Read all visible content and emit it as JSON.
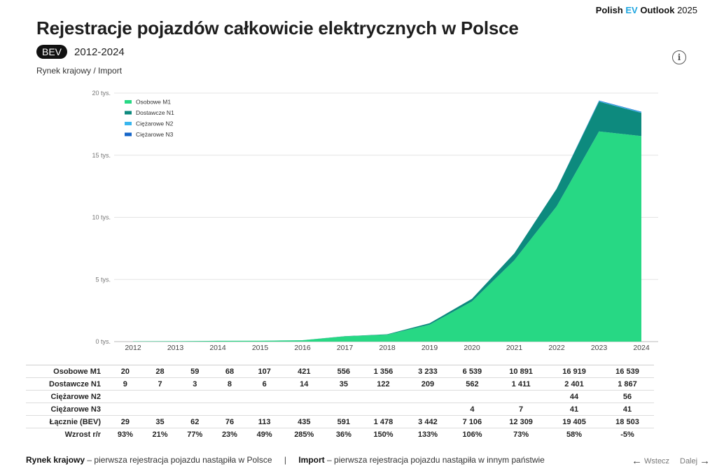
{
  "header": {
    "brand_prefix": "Polish",
    "brand_ev": "EV",
    "brand_bold": "Outlook",
    "brand_year": "2025",
    "title": "Rejestracje pojazdów całkowicie elektrycznych w Polsce",
    "badge": "BEV",
    "years": "2012-2024",
    "subtitle": "Rynek krajowy / Import",
    "info_icon": "i"
  },
  "chart_data": {
    "type": "area",
    "stacked": true,
    "categories": [
      "2012",
      "2013",
      "2014",
      "2015",
      "2016",
      "2017",
      "2018",
      "2019",
      "2020",
      "2021",
      "2022",
      "2023",
      "2024"
    ],
    "ylim": [
      0,
      20000
    ],
    "yticks": [
      0,
      5000,
      10000,
      15000,
      20000
    ],
    "ytick_labels": [
      "0 tys.",
      "5 tys.",
      "10 tys.",
      "15 tys.",
      "20 tys."
    ],
    "grid": true,
    "legend_position": "top-left",
    "series": [
      {
        "name": "Osobowe M1",
        "color": "#27d884",
        "values": [
          20,
          28,
          59,
          68,
          107,
          421,
          556,
          1356,
          3233,
          6539,
          10891,
          16919,
          16539
        ]
      },
      {
        "name": "Dostawcze N1",
        "color": "#0d8a7e",
        "values": [
          9,
          7,
          3,
          8,
          6,
          14,
          35,
          122,
          209,
          562,
          1411,
          2401,
          1867
        ]
      },
      {
        "name": "Ciężarowe N2",
        "color": "#39b6ee",
        "values": [
          0,
          0,
          0,
          0,
          0,
          0,
          0,
          0,
          0,
          0,
          0,
          44,
          56
        ]
      },
      {
        "name": "Ciężarowe N3",
        "color": "#1565c8",
        "values": [
          0,
          0,
          0,
          0,
          0,
          0,
          0,
          0,
          0,
          4,
          7,
          41,
          41
        ]
      }
    ]
  },
  "table": {
    "rows": [
      {
        "label": "Osobowe M1",
        "cells": [
          "20",
          "28",
          "59",
          "68",
          "107",
          "421",
          "556",
          "1 356",
          "3 233",
          "6 539",
          "10 891",
          "16 919",
          "16 539"
        ]
      },
      {
        "label": "Dostawcze N1",
        "cells": [
          "9",
          "7",
          "3",
          "8",
          "6",
          "14",
          "35",
          "122",
          "209",
          "562",
          "1 411",
          "2 401",
          "1 867"
        ]
      },
      {
        "label": "Ciężarowe N2",
        "cells": [
          "",
          "",
          "",
          "",
          "",
          "",
          "",
          "",
          "",
          "",
          "",
          "44",
          "56"
        ]
      },
      {
        "label": "Ciężarowe N3",
        "cells": [
          "",
          "",
          "",
          "",
          "",
          "",
          "",
          "",
          "",
          "4",
          "7",
          "41",
          "41"
        ]
      },
      {
        "label": "Łącznie (BEV)",
        "cells": [
          "29",
          "35",
          "62",
          "76",
          "113",
          "435",
          "591",
          "1 478",
          "3 442",
          "7 106",
          "12 309",
          "19 405",
          "18 503"
        ]
      },
      {
        "label": "Wzrost r/r",
        "cells": [
          "93%",
          "21%",
          "77%",
          "23%",
          "49%",
          "285%",
          "36%",
          "150%",
          "133%",
          "106%",
          "73%",
          "58%",
          "-5%"
        ]
      }
    ]
  },
  "footer": {
    "domestic_bold": "Rynek krajowy",
    "domestic_text": " – pierwsza rejestracja pojazdu nastąpiła w Polsce",
    "separator": "|",
    "import_bold": "Import",
    "import_text": " – pierwsza rejestracja pojazdu nastąpiła w innym państwie",
    "prev_label": "Wstecz",
    "next_label": "Dalej",
    "prev_icon": "←",
    "next_icon": "→"
  }
}
